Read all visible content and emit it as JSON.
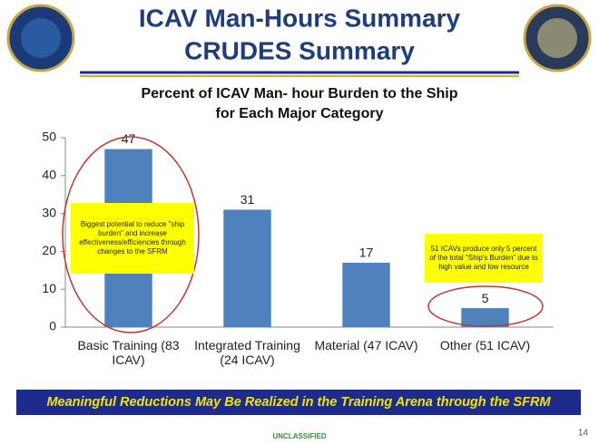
{
  "slide": {
    "title": [
      "ICAV Man-Hours Summary",
      "CRUDES Summary"
    ],
    "banner": "Meaningful Reductions May Be Realized in the Training Arena through the SFRM",
    "classification": "UNCLASSIFIED",
    "page_number": "14"
  },
  "chart_data": {
    "type": "bar",
    "title": [
      "Percent of ICAV Man- hour Burden to the Ship",
      "for Each Major Category"
    ],
    "categories": [
      "Basic Training (83 ICAV)",
      "Integrated Training (24 ICAV)",
      "Material (47 ICAV)",
      "Other (51 ICAV)"
    ],
    "values": [
      47,
      31,
      17,
      5
    ],
    "color": "#4f81bd",
    "ylim": [
      0,
      50
    ],
    "yticks": [
      0,
      10,
      20,
      30,
      40,
      50
    ],
    "grid": false,
    "annotations": [
      "Biggest potential to reduce \"ship burden\" and increase effectiveness/efficiencies through changes to the SFRM",
      "51 ICAVs produce only 5 percent of the total \"Ship's Burden\" due to high value and low resource"
    ]
  }
}
